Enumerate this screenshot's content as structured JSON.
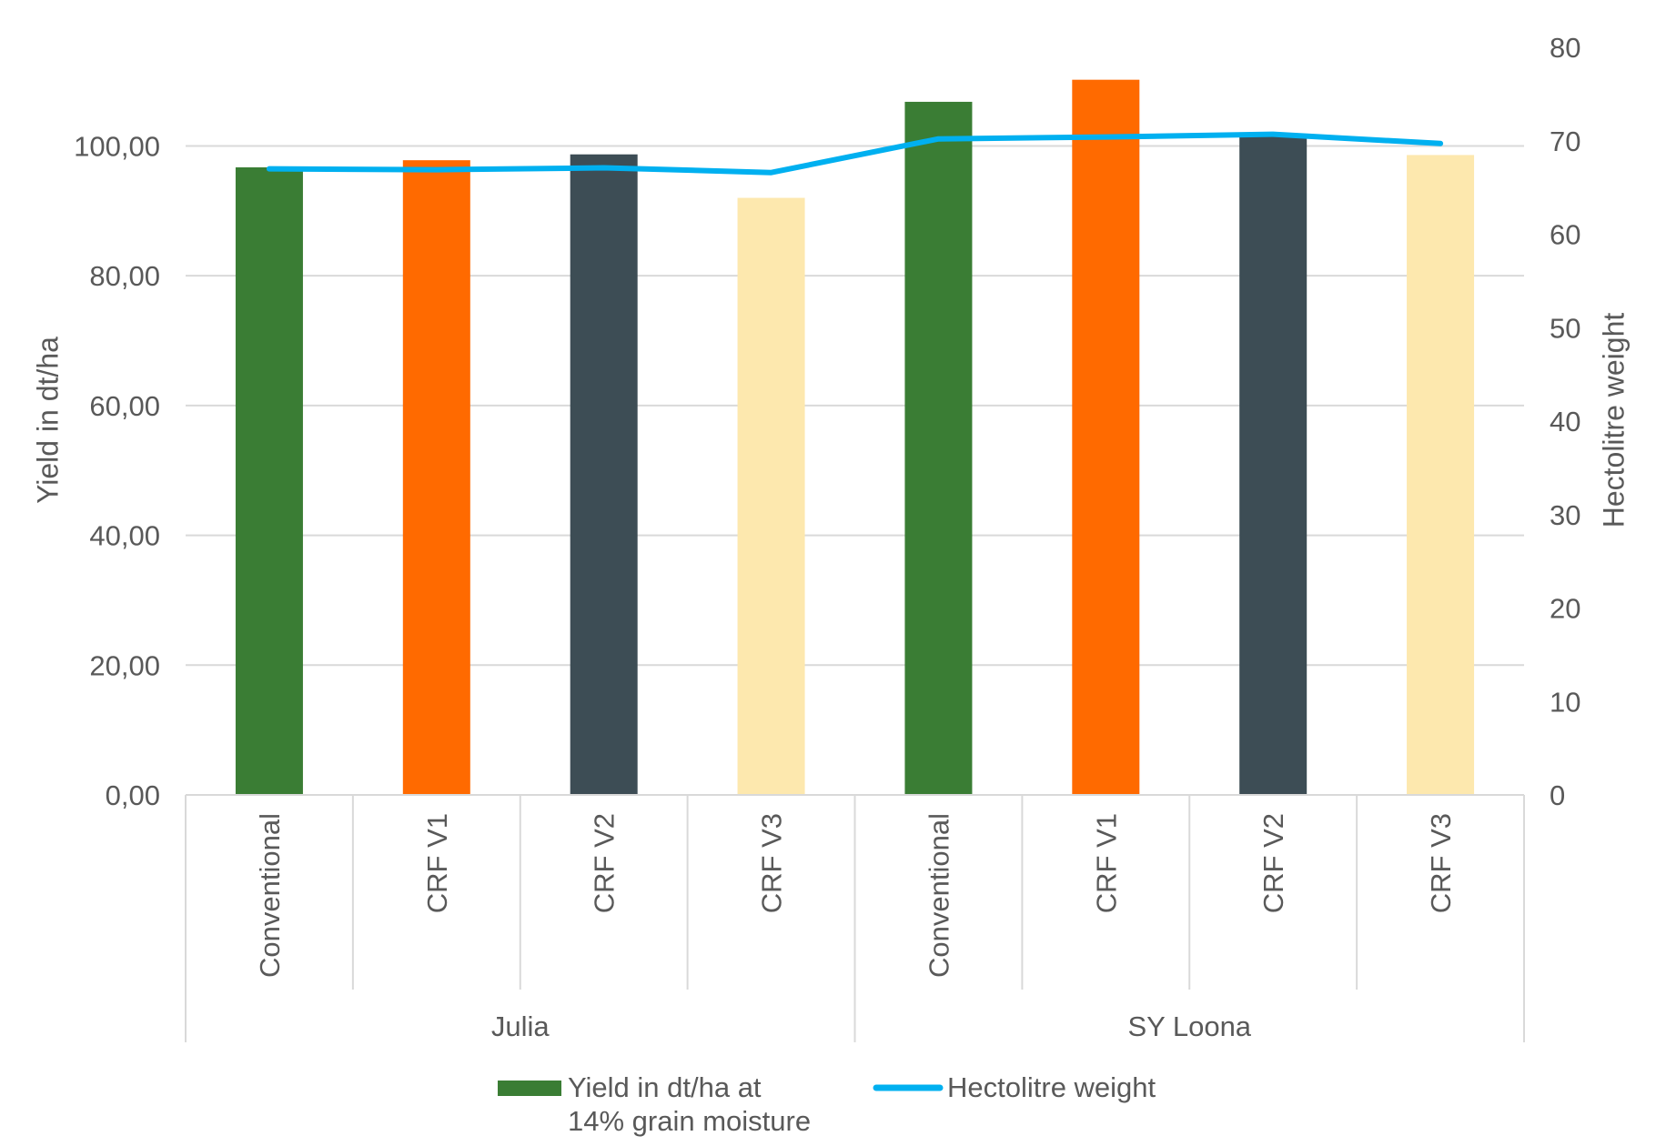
{
  "chart_data": {
    "type": "bar",
    "groups": [
      {
        "name": "Julia",
        "categories": [
          "Conventional",
          "CRF V1",
          "CRF V2",
          "CRF V3"
        ]
      },
      {
        "name": "SY Loona",
        "categories": [
          "Conventional",
          "CRF V1",
          "CRF V2",
          "CRF V3"
        ]
      }
    ],
    "categories": [
      "Conventional",
      "CRF V1",
      "CRF V2",
      "CRF V3",
      "Conventional",
      "CRF V1",
      "CRF V2",
      "CRF V3"
    ],
    "series": [
      {
        "name": "Yield in dt/ha at 14% grain moisture",
        "legend_lines": [
          "Yield in dt/ha at",
          "14% grain moisture"
        ],
        "type": "bar",
        "axis": "left",
        "values": [
          96.7,
          97.8,
          98.7,
          92.0,
          106.8,
          110.2,
          101.8,
          98.6
        ],
        "colors": [
          "#3a7d34",
          "#ff6a00",
          "#3d4d55",
          "#fde8ae",
          "#3a7d34",
          "#ff6a00",
          "#3d4d55",
          "#fde8ae"
        ]
      },
      {
        "name": "Hectolitre weight",
        "type": "line",
        "axis": "right",
        "values": [
          67.0,
          66.9,
          67.1,
          66.6,
          70.2,
          70.4,
          70.7,
          69.7
        ],
        "color": "#00b0f0"
      }
    ],
    "ylabel": "Yield in dt/ha",
    "y2label": "Hectolitre weight",
    "ylim": [
      0,
      115.2
    ],
    "yticks": [
      0,
      20,
      40,
      60,
      80,
      100
    ],
    "ytick_labels": [
      "0,00",
      "20,00",
      "40,00",
      "60,00",
      "80,00",
      "100,00"
    ],
    "y2lim": [
      0,
      80
    ],
    "y2ticks": [
      0,
      10,
      20,
      30,
      40,
      50,
      60,
      70,
      80
    ],
    "y2tick_labels": [
      "0",
      "10",
      "20",
      "30",
      "40",
      "50",
      "60",
      "70",
      "80"
    ],
    "grid": true,
    "legend_position": "bottom"
  }
}
